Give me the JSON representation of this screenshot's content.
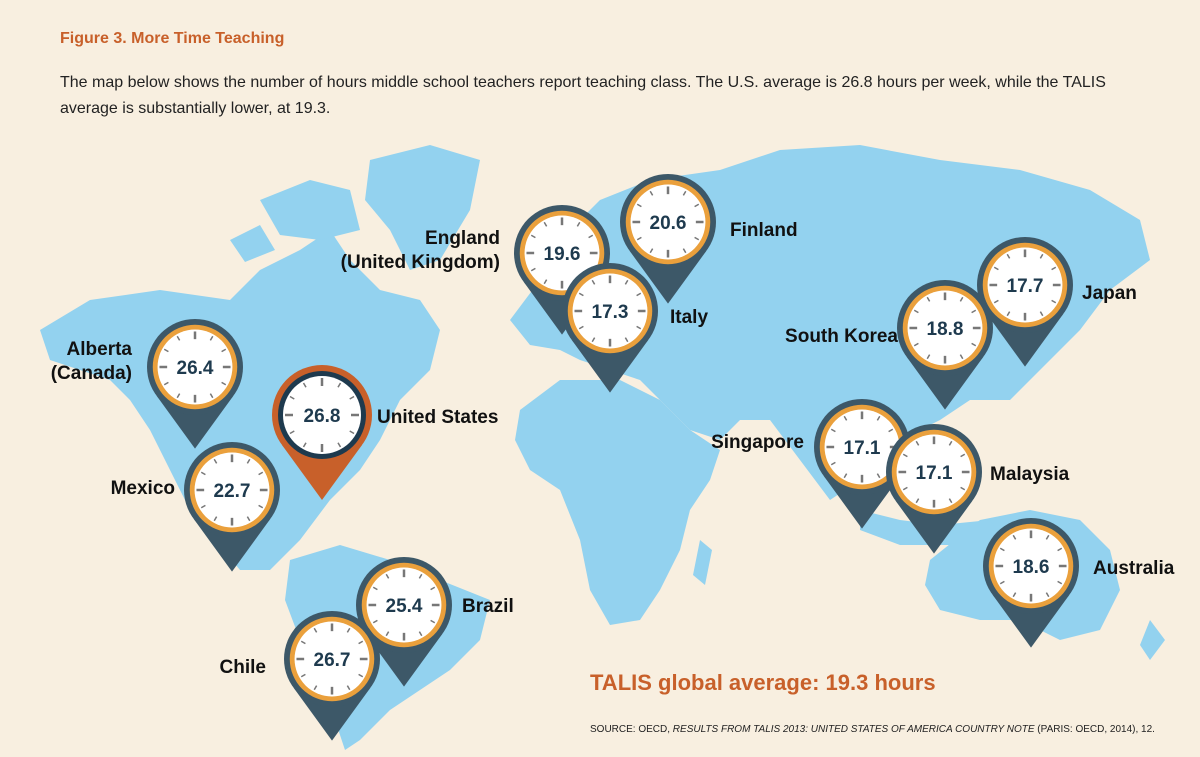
{
  "figure": {
    "title": "Figure 3. More Time Teaching",
    "intro": "The map below shows the number of hours middle school teachers report teaching class. The U.S. average is 26.8 hours per week, while the TALIS average is substantially lower, at 19.3.",
    "average": "TALIS global average: 19.3 hours",
    "source": [
      "SOURCE: OECD, ",
      "RESULTS FROM TALIS 2013: UNITED STATES OF AMERICA COUNTRY NOTE",
      " (PARIS: OECD, 2014), 12."
    ]
  },
  "pins": [
    {
      "label": [
        "Alberta",
        "(Canada)"
      ],
      "value": 26.4
    },
    {
      "label": [
        "Mexico"
      ],
      "value": 22.7
    },
    {
      "label": [
        "United States"
      ],
      "value": 26.8,
      "highlight": true
    },
    {
      "label": [
        "England",
        "(United Kingdom)"
      ],
      "value": 19.6
    },
    {
      "label": [
        "Finland"
      ],
      "value": 20.6
    },
    {
      "label": [
        "Italy"
      ],
      "value": 17.3
    },
    {
      "label": [
        "Japan"
      ],
      "value": 17.7
    },
    {
      "label": [
        "South Korea"
      ],
      "value": 18.8
    },
    {
      "label": [
        "Singapore"
      ],
      "value": 17.1
    },
    {
      "label": [
        "Malaysia"
      ],
      "value": 17.1
    },
    {
      "label": [
        "Australia"
      ],
      "value": 18.6
    },
    {
      "label": [
        "Brazil"
      ],
      "value": 25.4
    },
    {
      "label": [
        "Chile"
      ],
      "value": 26.7
    }
  ]
}
